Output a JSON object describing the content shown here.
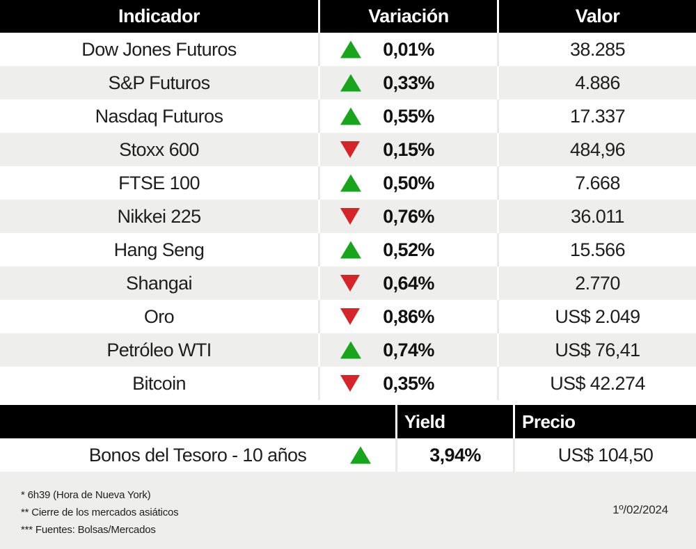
{
  "table": {
    "headers": {
      "indicator": "Indicador",
      "variation": "Variación",
      "value": "Valor"
    },
    "rows": [
      {
        "indicator": "Dow Jones Futuros",
        "direction": "up",
        "variation": "0,01%",
        "value": "38.285"
      },
      {
        "indicator": "S&P Futuros",
        "direction": "up",
        "variation": "0,33%",
        "value": "4.886"
      },
      {
        "indicator": "Nasdaq Futuros",
        "direction": "up",
        "variation": "0,55%",
        "value": "17.337"
      },
      {
        "indicator": "Stoxx 600",
        "direction": "down",
        "variation": "0,15%",
        "value": "484,96"
      },
      {
        "indicator": "FTSE 100",
        "direction": "up",
        "variation": "0,50%",
        "value": "7.668"
      },
      {
        "indicator": "Nikkei 225",
        "direction": "down",
        "variation": "0,76%",
        "value": "36.011"
      },
      {
        "indicator": "Hang Seng",
        "direction": "up",
        "variation": "0,52%",
        "value": "15.566"
      },
      {
        "indicator": "Shangai",
        "direction": "down",
        "variation": "0,64%",
        "value": "2.770"
      },
      {
        "indicator": "Oro",
        "direction": "down",
        "variation": "0,86%",
        "value": "US$ 2.049"
      },
      {
        "indicator": "Petróleo WTI",
        "direction": "up",
        "variation": "0,74%",
        "value": "US$ 76,41"
      },
      {
        "indicator": "Bitcoin",
        "direction": "down",
        "variation": "0,35%",
        "value": "US$ 42.274"
      }
    ]
  },
  "bonds": {
    "headers": {
      "yield": "Yield",
      "price": "Precio"
    },
    "row": {
      "indicator": "Bonos del Tesoro - 10 años",
      "direction": "up",
      "yield": "3,94%",
      "price": "US$ 104,50"
    }
  },
  "footer": {
    "notes": [
      "* 6h39 (Hora de Nueva York)",
      "** Cierre de los mercados asiáticos",
      "*** Fuentes: Bolsas/Mercados"
    ],
    "date": "1º/02/2024"
  },
  "colors": {
    "up_green": "#18a51d",
    "down_red": "#d4252b",
    "header_bg": "#000000",
    "row_alt_gray": "#eeeeec",
    "footer_bg": "#eeeeec"
  },
  "chart_data": [
    {
      "type": "table",
      "title": "Indicadores de mercado",
      "columns": [
        "Indicador",
        "Variación",
        "Valor"
      ],
      "rows": [
        [
          "Dow Jones Futuros",
          "+0,01%",
          "38.285"
        ],
        [
          "S&P Futuros",
          "+0,33%",
          "4.886"
        ],
        [
          "Nasdaq Futuros",
          "+0,55%",
          "17.337"
        ],
        [
          "Stoxx 600",
          "-0,15%",
          "484,96"
        ],
        [
          "FTSE 100",
          "+0,50%",
          "7.668"
        ],
        [
          "Nikkei 225",
          "-0,76%",
          "36.011"
        ],
        [
          "Hang Seng",
          "+0,52%",
          "15.566"
        ],
        [
          "Shangai",
          "-0,64%",
          "2.770"
        ],
        [
          "Oro",
          "-0,86%",
          "US$ 2.049"
        ],
        [
          "Petróleo WTI",
          "+0,74%",
          "US$ 76,41"
        ],
        [
          "Bitcoin",
          "-0,35%",
          "US$ 42.274"
        ]
      ]
    },
    {
      "type": "table",
      "title": "Bonos",
      "columns": [
        "",
        "Yield",
        "Precio"
      ],
      "rows": [
        [
          "Bonos del Tesoro - 10 años",
          "+3,94%",
          "US$ 104,50"
        ]
      ]
    }
  ]
}
